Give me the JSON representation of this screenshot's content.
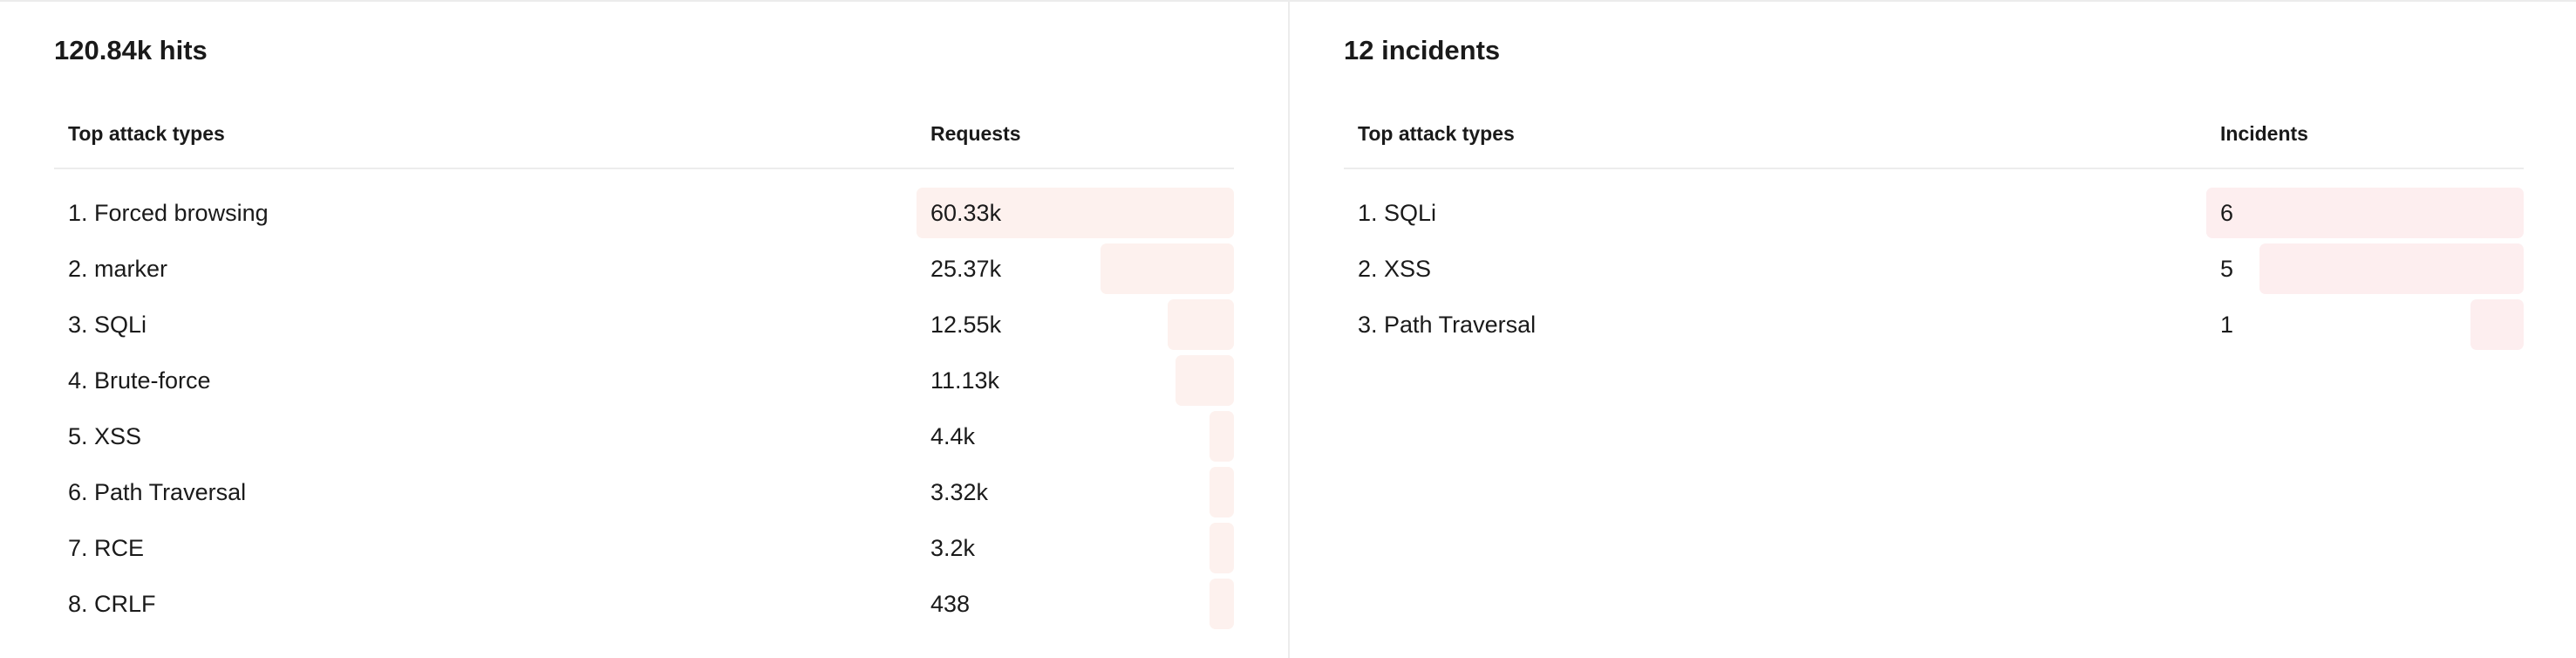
{
  "hits_panel": {
    "title": "120.84k hits",
    "col_name": "Top attack types",
    "col_value": "Requests",
    "bar_color": "#fdf1ee",
    "rows": [
      {
        "label": "1. Forced browsing",
        "value": "60.33k",
        "fraction": 1.0
      },
      {
        "label": "2. marker",
        "value": "25.37k",
        "fraction": 0.421
      },
      {
        "label": "3. SQLi",
        "value": "12.55k",
        "fraction": 0.208
      },
      {
        "label": "4. Brute-force",
        "value": "11.13k",
        "fraction": 0.184
      },
      {
        "label": "5. XSS",
        "value": "4.4k",
        "fraction": 0.073
      },
      {
        "label": "6. Path Traversal",
        "value": "3.32k",
        "fraction": 0.055
      },
      {
        "label": "7. RCE",
        "value": "3.2k",
        "fraction": 0.053
      },
      {
        "label": "8. CRLF",
        "value": "438",
        "fraction": 0.007
      }
    ]
  },
  "incidents_panel": {
    "title": "12 incidents",
    "col_name": "Top attack types",
    "col_value": "Incidents",
    "bar_color": "#fdeeef",
    "rows": [
      {
        "label": "1. SQLi",
        "value": "6",
        "fraction": 1.0
      },
      {
        "label": "2. XSS",
        "value": "5",
        "fraction": 0.833
      },
      {
        "label": "3. Path Traversal",
        "value": "1",
        "fraction": 0.167
      }
    ]
  }
}
